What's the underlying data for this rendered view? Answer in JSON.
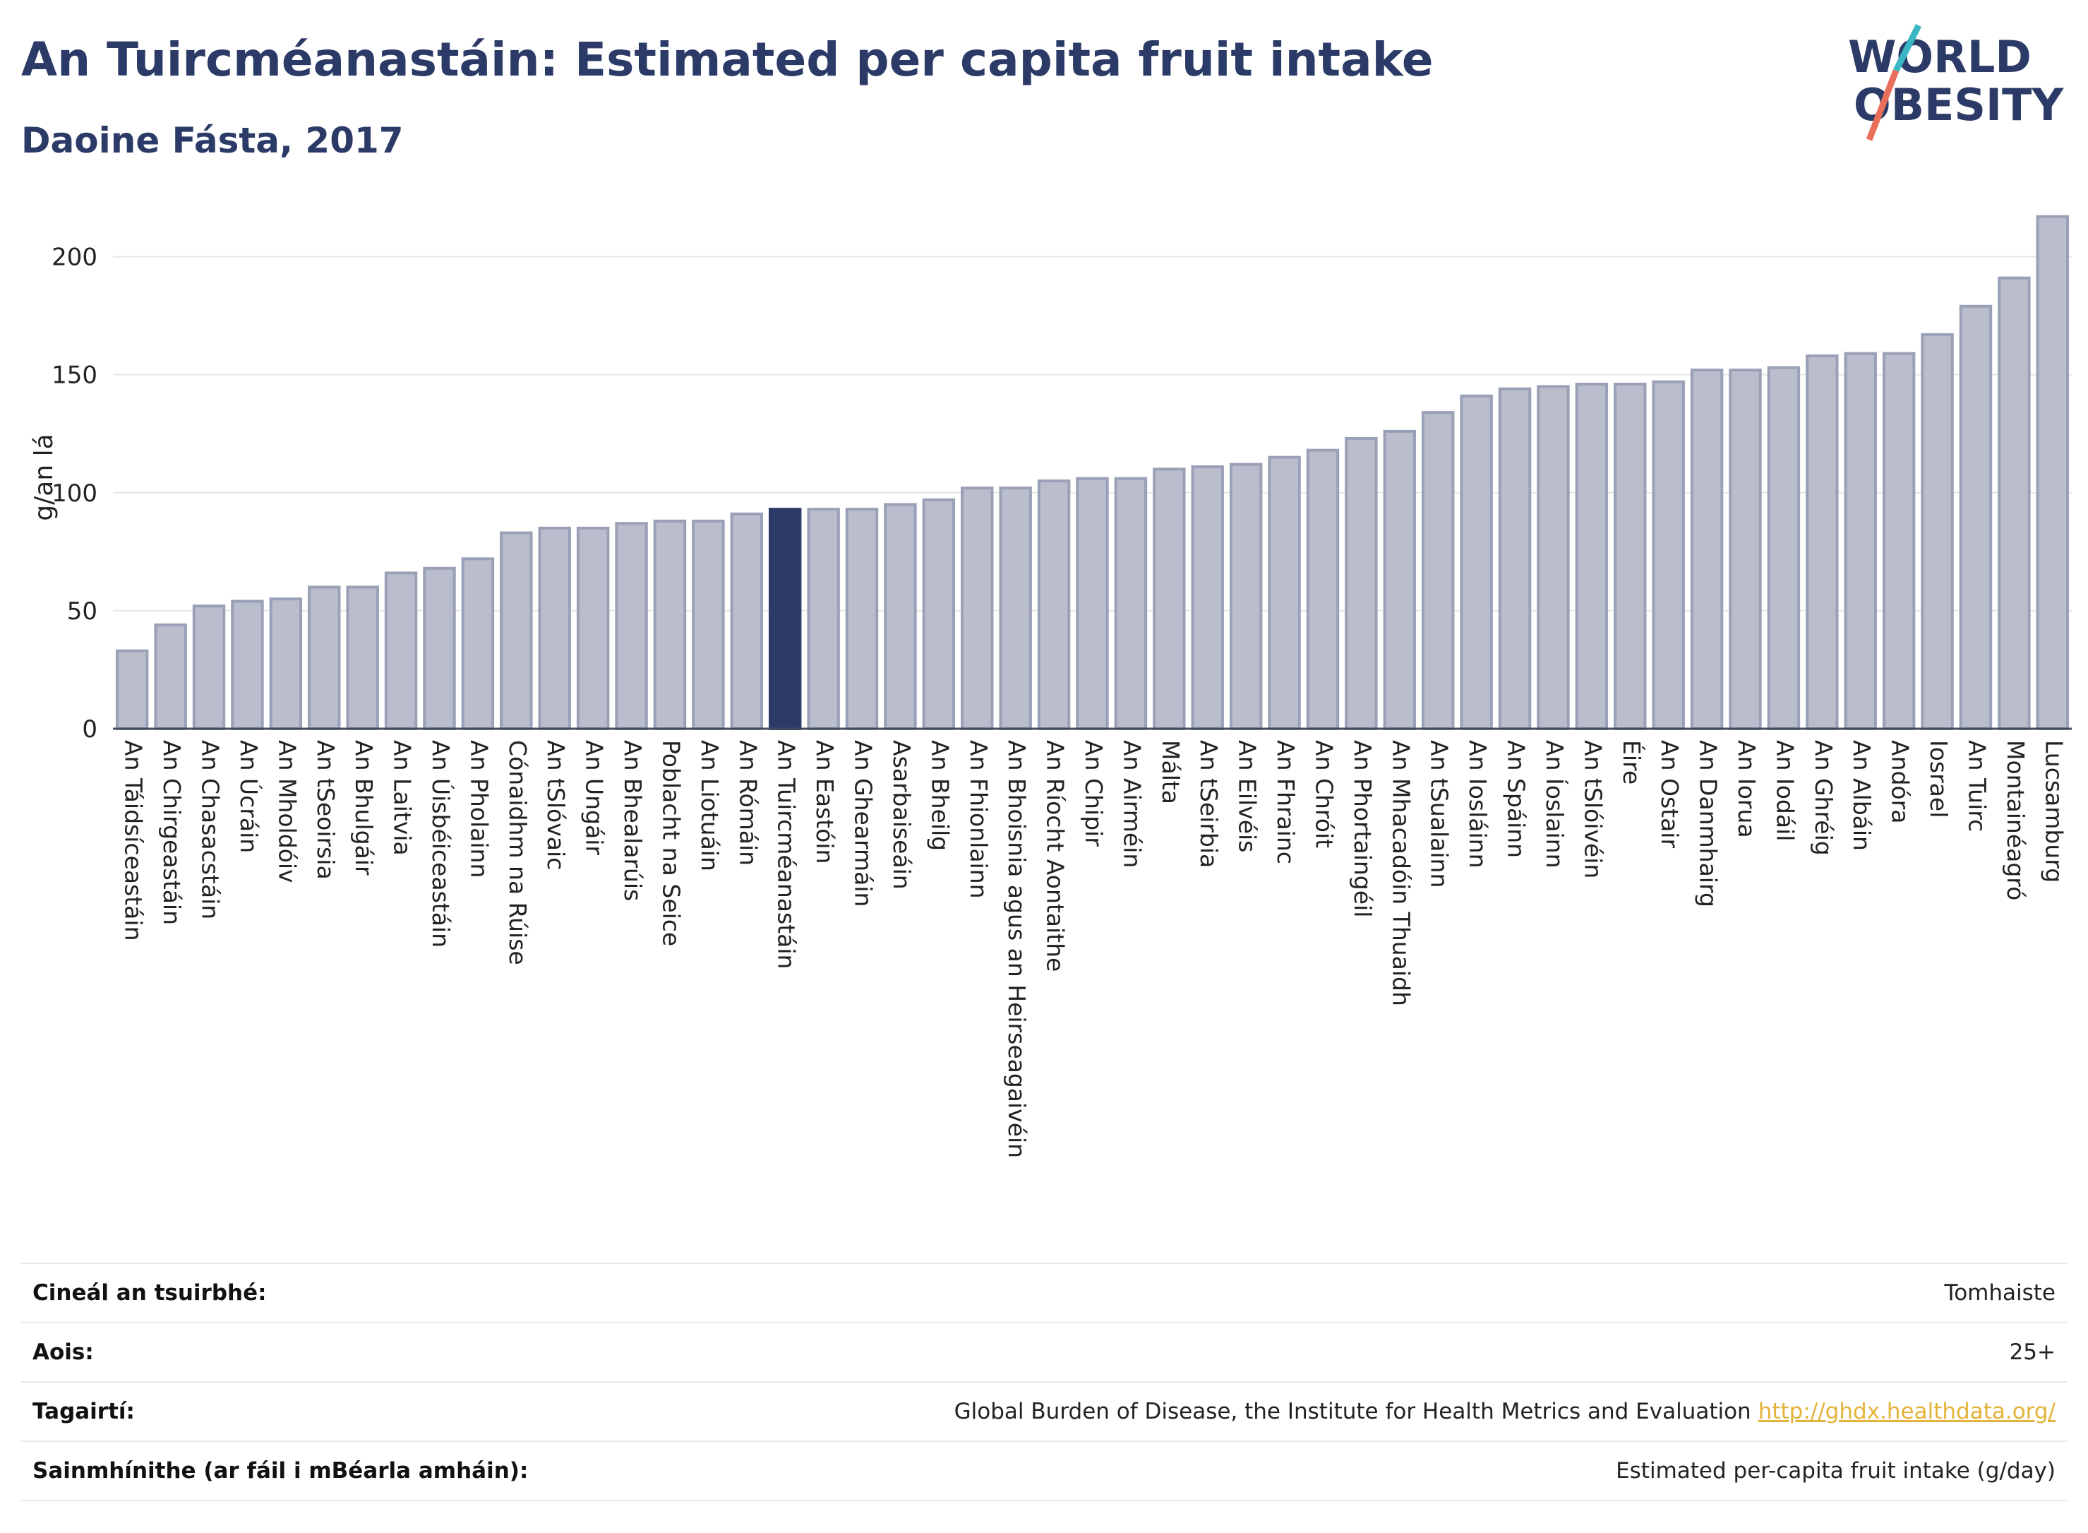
{
  "header": {
    "title": "An Tuircméanastáin: Estimated per capita fruit intake",
    "subtitle": "Daoine Fásta, 2017"
  },
  "logo": {
    "line1": "WORLD",
    "line2": "OBESITY"
  },
  "colors": {
    "bar": "#b9bdcc",
    "bar_stroke": "#9aa0b6",
    "highlight": "#2b3a67",
    "title": "#2b3a67",
    "link": "#e3b33a",
    "logo_teal": "#3ab7c3",
    "logo_coral": "#e8705b"
  },
  "chart_data": {
    "type": "bar",
    "title": "An Tuircméanastáin: Estimated per capita fruit intake",
    "subtitle": "Daoine Fásta, 2017",
    "ylabel": "g/an lá",
    "xlabel": "",
    "ylim": [
      0,
      225
    ],
    "yticks": [
      0,
      50,
      100,
      150,
      200
    ],
    "grid": true,
    "highlight": "An Tuircméanastáin",
    "categories": [
      "An Táidsíceastáin",
      "An Chirgeastáin",
      "An Chasacstáin",
      "An Úcráin",
      "An Mholdóiv",
      "An tSeoirsia",
      "An Bhulgáir",
      "An Laitvia",
      "An Úisbéiceastáin",
      "An Pholainn",
      "Cónaidhm na Rúise",
      "An tSlóvaic",
      "An Ungáir",
      "An Bhealarúis",
      "Poblacht na Seice",
      "An Liotuáin",
      "An Rómáin",
      "An Tuircméanastáin",
      "An Eastóin",
      "An Ghearmáin",
      "Asarbaiseáin",
      "An Bheilg",
      "An Fhionlainn",
      "An Bhoisnia agus an Heirseagaivéin",
      "An Ríocht Aontaithe",
      "An Chipir",
      "An Airméin",
      "Málta",
      "An tSeirbia",
      "An Eilvéis",
      "An Fhrainc",
      "An Chróit",
      "An Phortaingéil",
      "An Mhacadóin Thuaidh",
      "An tSualainn",
      "An Iosláinn",
      "An Spáinn",
      "An Íoslainn",
      "An tSlóivéin",
      "Éire",
      "An Ostair",
      "An Danmhairg",
      "An Iorua",
      "An Iodáil",
      "An Ghréig",
      "An Albáin",
      "Andóra",
      "Iosrael",
      "An Tuirc",
      "Montainéagró",
      "Lucsamburg"
    ],
    "values": [
      33,
      44,
      52,
      54,
      55,
      60,
      60,
      66,
      68,
      72,
      83,
      85,
      85,
      87,
      88,
      88,
      91,
      93,
      93,
      93,
      95,
      97,
      102,
      102,
      105,
      106,
      106,
      110,
      111,
      112,
      115,
      118,
      123,
      126,
      134,
      141,
      144,
      145,
      146,
      146,
      147,
      152,
      152,
      153,
      158,
      159,
      159,
      167,
      179,
      191,
      217
    ]
  },
  "info": {
    "rows": [
      {
        "label": "Cineál an tsuirbhé:",
        "value": "Tomhaiste"
      },
      {
        "label": "Aois:",
        "value": "25+"
      },
      {
        "label": "Tagairtí:",
        "value": "Global Burden of Disease, the Institute for Health Metrics and Evaluation",
        "link": "http://ghdx.healthdata.org/"
      },
      {
        "label": "Sainmhínithe (ar fáil i mBéarla amháin):",
        "value": "Estimated per-capita fruit intake (g/day)"
      }
    ]
  }
}
